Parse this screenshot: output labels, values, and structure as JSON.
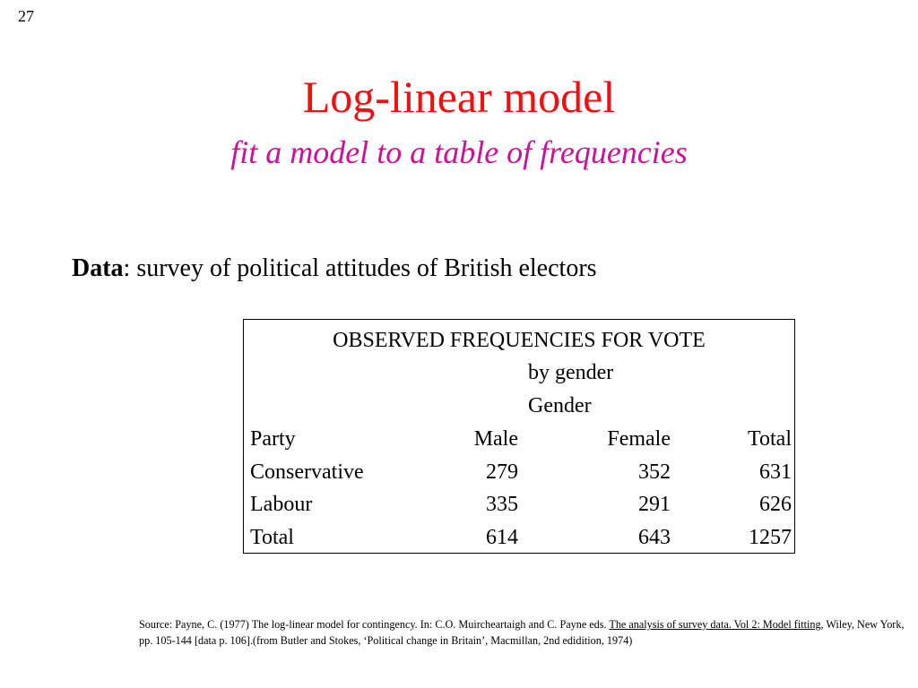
{
  "slide": {
    "page_number": "27",
    "title": "Log-linear model",
    "subtitle": "fit a model to a table of frequencies"
  },
  "data_line": {
    "label": "Data",
    "text": ": survey of political attitudes of British electors"
  },
  "table": {
    "title": "OBSERVED FREQUENCIES FOR VOTE",
    "subtitle_1": "by gender",
    "subtitle_2": "Gender",
    "headers": [
      "Party",
      "Male",
      "Female",
      "Total"
    ],
    "rows": [
      [
        "Conservative",
        "279",
        "352",
        "631"
      ],
      [
        "Labour",
        "335",
        "291",
        "626"
      ],
      [
        "Total",
        "614",
        "643",
        "1257"
      ]
    ]
  },
  "source": {
    "part1": "Source: Payne, C. (1977) The log-linear model for contingency. In: C.O. Muircheartaigh and C. Payne eds. ",
    "underlined": "The analysis of survey data. Vol 2: Model fitting",
    "part2": ", Wiley, New York, pp. 105-144 [data p. 106].(from Butler and Stokes, ‘Political change in Britain’,  Macmillan, 2nd edidition, 1974)"
  }
}
